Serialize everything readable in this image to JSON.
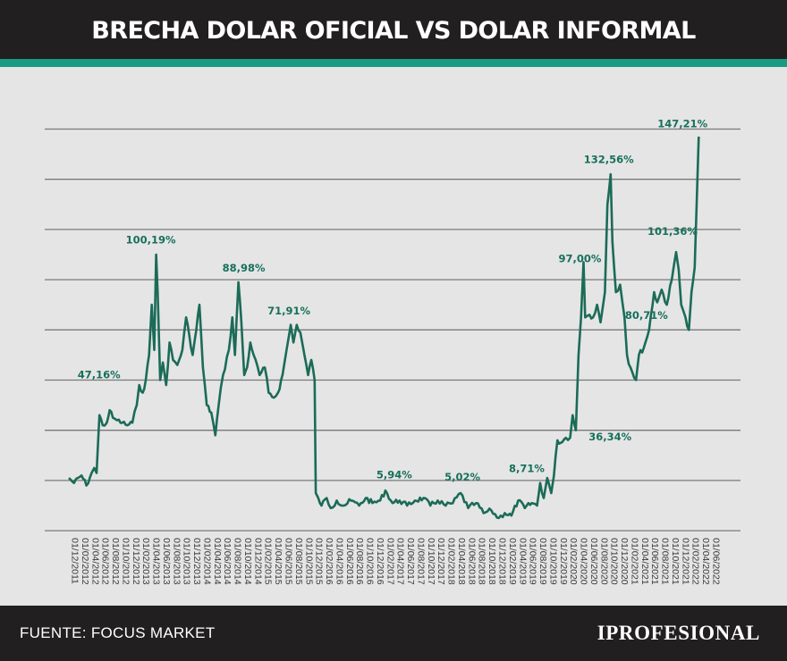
{
  "header": {
    "title": "BRECHA DOLAR OFICIAL VS DOLAR INFORMAL"
  },
  "footer": {
    "source": "FUENTE: FOCUS MARKET",
    "brand": "IPROFESIONAL"
  },
  "colors": {
    "line": "#1b6b58",
    "annotation": "#17705c",
    "accent": "#1a9a82",
    "header_bg": "#221f20",
    "plot_bg": "#e5e5e5",
    "grid": "#7a7a7a"
  },
  "chart_data": {
    "type": "line",
    "title": "BRECHA DOLAR OFICIAL VS DOLAR INFORMAL",
    "xlabel": "",
    "ylabel": "",
    "ylim": [
      -10,
      150
    ],
    "grid": true,
    "legend": "none",
    "x_ticks": [
      "01/12/2011",
      "01/02/2012",
      "01/04/2012",
      "01/06/2012",
      "01/08/2012",
      "01/10/2012",
      "01/12/2012",
      "01/02/2013",
      "01/04/2013",
      "01/06/2013",
      "01/08/2013",
      "01/10/2013",
      "01/12/2013",
      "01/02/2014",
      "01/04/2014",
      "01/06/2014",
      "01/08/2014",
      "01/10/2014",
      "01/12/2014",
      "01/02/2015",
      "01/04/2015",
      "01/06/2015",
      "01/08/2015",
      "01/10/2015",
      "01/12/2015",
      "01/02/2016",
      "01/04/2016",
      "01/06/2016",
      "01/08/2016",
      "01/10/2016",
      "01/12/2016",
      "01/02/2017",
      "01/04/2017",
      "01/06/2017",
      "01/08/2017",
      "01/10/2017",
      "01/12/2017",
      "01/02/2018",
      "01/04/2018",
      "01/06/2018",
      "01/08/2018",
      "01/10/2018",
      "01/12/2018",
      "01/02/2019",
      "01/04/2019",
      "01/06/2019",
      "01/08/2019",
      "01/10/2019",
      "01/12/2019",
      "01/02/2020",
      "01/04/2020",
      "01/06/2020",
      "01/08/2020",
      "01/10/2020",
      "01/12/2020",
      "01/02/2021",
      "01/04/2021",
      "01/06/2021",
      "01/08/2021",
      "01/10/2021",
      "01/12/2021",
      "01/02/2022",
      "01/04/2022",
      "01/06/2022"
    ],
    "series": [
      {
        "points": [
          [
            "2011-12-01",
            11
          ],
          [
            "2012-01-01",
            9
          ],
          [
            "2012-02-15",
            12
          ],
          [
            "2012-03-15",
            8
          ],
          [
            "2012-04-15",
            13
          ],
          [
            "2012-05-01",
            15
          ],
          [
            "2012-05-15",
            13
          ],
          [
            "2012-06-01",
            36
          ],
          [
            "2012-06-20",
            32
          ],
          [
            "2012-07-15",
            33
          ],
          [
            "2012-08-01",
            38
          ],
          [
            "2012-08-20",
            35
          ],
          [
            "2012-09-15",
            34
          ],
          [
            "2012-10-15",
            33
          ],
          [
            "2012-11-15",
            32
          ],
          [
            "2012-12-15",
            33
          ],
          [
            "2013-01-10",
            40
          ],
          [
            "2013-01-25",
            48
          ],
          [
            "2013-02-15",
            45
          ],
          [
            "2013-03-05",
            50
          ],
          [
            "2013-03-25",
            60
          ],
          [
            "2013-04-10",
            80
          ],
          [
            "2013-04-25",
            62
          ],
          [
            "2013-05-06",
            100
          ],
          [
            "2013-05-15",
            85
          ],
          [
            "2013-05-30",
            50
          ],
          [
            "2013-06-15",
            57
          ],
          [
            "2013-07-05",
            48
          ],
          [
            "2013-07-25",
            65
          ],
          [
            "2013-08-15",
            58
          ],
          [
            "2013-09-10",
            56
          ],
          [
            "2013-10-10",
            62
          ],
          [
            "2013-11-01",
            75
          ],
          [
            "2013-11-20",
            68
          ],
          [
            "2013-12-10",
            60
          ],
          [
            "2014-01-01",
            70
          ],
          [
            "2014-01-20",
            80
          ],
          [
            "2014-02-10",
            55
          ],
          [
            "2014-03-05",
            40
          ],
          [
            "2014-04-01",
            37
          ],
          [
            "2014-04-25",
            28
          ],
          [
            "2014-05-15",
            40
          ],
          [
            "2014-06-10",
            52
          ],
          [
            "2014-07-15",
            62
          ],
          [
            "2014-08-05",
            75
          ],
          [
            "2014-08-20",
            60
          ],
          [
            "2014-09-10",
            89
          ],
          [
            "2014-09-28",
            73
          ],
          [
            "2014-10-15",
            52
          ],
          [
            "2014-11-01",
            55
          ],
          [
            "2014-11-20",
            65
          ],
          [
            "2014-12-10",
            60
          ],
          [
            "2015-01-15",
            52
          ],
          [
            "2015-02-15",
            55
          ],
          [
            "2015-03-10",
            45
          ],
          [
            "2015-04-10",
            43
          ],
          [
            "2015-05-05",
            45
          ],
          [
            "2015-06-01",
            52
          ],
          [
            "2015-06-25",
            62
          ],
          [
            "2015-07-20",
            72
          ],
          [
            "2015-08-05",
            65
          ],
          [
            "2015-08-25",
            72
          ],
          [
            "2015-09-15",
            69
          ],
          [
            "2015-10-10",
            60
          ],
          [
            "2015-11-01",
            52
          ],
          [
            "2015-11-20",
            58
          ],
          [
            "2015-12-10",
            50
          ],
          [
            "2015-12-17",
            5
          ],
          [
            "2016-01-01",
            3
          ],
          [
            "2016-01-20",
            0
          ],
          [
            "2016-02-20",
            3
          ],
          [
            "2016-03-15",
            -1
          ],
          [
            "2016-04-20",
            2
          ],
          [
            "2016-06-01",
            0
          ],
          [
            "2016-07-15",
            2
          ],
          [
            "2016-09-01",
            0
          ],
          [
            "2016-10-10",
            3
          ],
          [
            "2016-11-20",
            1
          ],
          [
            "2017-01-05",
            2
          ],
          [
            "2017-02-05",
            6
          ],
          [
            "2017-03-20",
            1
          ],
          [
            "2017-05-01",
            2
          ],
          [
            "2017-06-15",
            0
          ],
          [
            "2017-08-01",
            2
          ],
          [
            "2017-09-20",
            3
          ],
          [
            "2017-11-01",
            0
          ],
          [
            "2017-12-15",
            2
          ],
          [
            "2018-02-01",
            0
          ],
          [
            "2018-03-15",
            1
          ],
          [
            "2018-05-01",
            5
          ],
          [
            "2018-06-15",
            -1
          ],
          [
            "2018-08-01",
            1
          ],
          [
            "2018-09-15",
            -3
          ],
          [
            "2018-11-01",
            -2
          ],
          [
            "2018-12-15",
            -5
          ],
          [
            "2019-01-20",
            -3
          ],
          [
            "2019-03-01",
            -4
          ],
          [
            "2019-04-10",
            2
          ],
          [
            "2019-05-20",
            -1
          ],
          [
            "2019-07-01",
            1
          ],
          [
            "2019-08-01",
            0
          ],
          [
            "2019-08-20",
            9
          ],
          [
            "2019-09-10",
            3
          ],
          [
            "2019-10-01",
            11
          ],
          [
            "2019-10-25",
            5
          ],
          [
            "2019-11-10",
            12
          ],
          [
            "2019-12-01",
            26
          ],
          [
            "2019-12-20",
            25
          ],
          [
            "2020-01-20",
            27
          ],
          [
            "2020-02-15",
            27
          ],
          [
            "2020-03-01",
            36
          ],
          [
            "2020-03-20",
            30
          ],
          [
            "2020-04-05",
            60
          ],
          [
            "2020-04-20",
            75
          ],
          [
            "2020-05-05",
            97
          ],
          [
            "2020-05-15",
            75
          ],
          [
            "2020-06-10",
            76
          ],
          [
            "2020-07-01",
            75
          ],
          [
            "2020-07-25",
            80
          ],
          [
            "2020-08-15",
            73
          ],
          [
            "2020-09-10",
            85
          ],
          [
            "2020-09-25",
            120
          ],
          [
            "2020-10-14",
            132
          ],
          [
            "2020-10-25",
            105
          ],
          [
            "2020-11-15",
            85
          ],
          [
            "2020-12-10",
            88
          ],
          [
            "2021-01-05",
            75
          ],
          [
            "2021-01-20",
            60
          ],
          [
            "2021-02-10",
            55
          ],
          [
            "2021-03-15",
            50
          ],
          [
            "2021-04-01",
            60
          ],
          [
            "2021-05-01",
            63
          ],
          [
            "2021-06-01",
            70
          ],
          [
            "2021-07-01",
            85
          ],
          [
            "2021-07-20",
            81
          ],
          [
            "2021-08-15",
            86
          ],
          [
            "2021-09-15",
            80
          ],
          [
            "2021-10-15",
            90
          ],
          [
            "2021-11-10",
            101
          ],
          [
            "2021-11-25",
            94
          ],
          [
            "2021-12-10",
            80
          ],
          [
            "2022-01-05",
            75
          ],
          [
            "2022-01-25",
            70
          ],
          [
            "2022-02-10",
            85
          ],
          [
            "2022-03-01",
            95
          ],
          [
            "2022-03-15",
            125
          ],
          [
            "2022-03-25",
            147
          ]
        ]
      }
    ],
    "annotations": [
      {
        "label": "47,16%",
        "x": "2012-07-01",
        "y": 47.16
      },
      {
        "label": "100,19%",
        "x": "2013-05-06",
        "y": 100.19
      },
      {
        "label": "88,98%",
        "x": "2014-09-10",
        "y": 88.98
      },
      {
        "label": "71,91%",
        "x": "2015-07-20",
        "y": 71.91
      },
      {
        "label": "5,94%",
        "x": "2017-02-05",
        "y": 5.94
      },
      {
        "label": "5,02%",
        "x": "2018-05-01",
        "y": 5.02
      },
      {
        "label": "8,71%",
        "x": "2019-08-20",
        "y": 8.71
      },
      {
        "label": "36,34%",
        "x": "2020-03-01",
        "y": 36.34
      },
      {
        "label": "97,00%",
        "x": "2020-05-05",
        "y": 97.0
      },
      {
        "label": "132,56%",
        "x": "2020-10-14",
        "y": 132.56
      },
      {
        "label": "80,71%",
        "x": "2021-07-20",
        "y": 80.71
      },
      {
        "label": "101,36%",
        "x": "2021-11-10",
        "y": 101.36
      },
      {
        "label": "147,21%",
        "x": "2022-03-25",
        "y": 147.21
      }
    ]
  }
}
